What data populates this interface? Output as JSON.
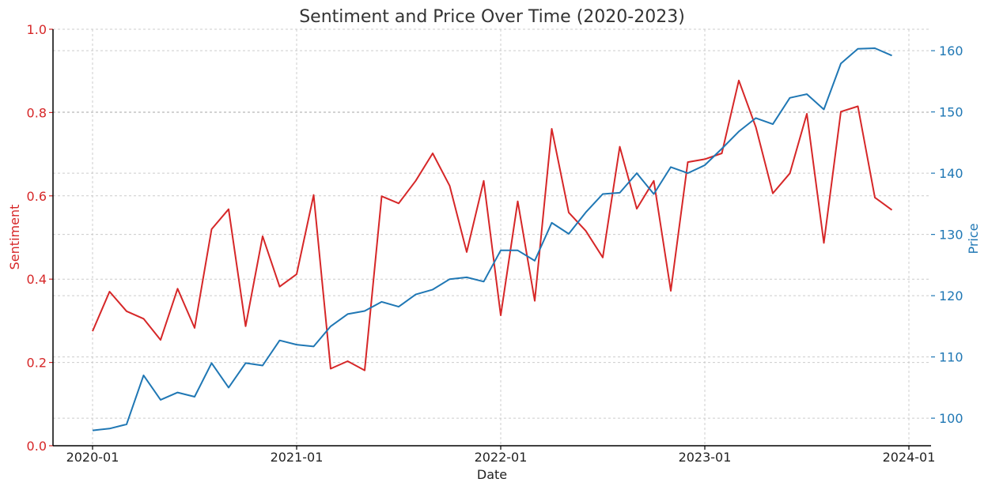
{
  "colors": {
    "sentiment": "#d62728",
    "price": "#1f77b4",
    "text": "#222222"
  },
  "chart_data": {
    "type": "line",
    "title": "Sentiment and Price Over Time (2020-2023)",
    "xlabel": "Date",
    "ylabel_left": "Sentiment",
    "ylabel_right": "Price",
    "x_ticks": [
      "2020-01",
      "2021-01",
      "2022-01",
      "2023-01",
      "2024-01"
    ],
    "ylim_left": [
      0,
      1.0
    ],
    "y_ticks_left": [
      "0.0",
      "0.2",
      "0.4",
      "0.6",
      "0.8",
      "1.0"
    ],
    "ylim_right": [
      95.5,
      163.5
    ],
    "y_ticks_right": [
      "100",
      "110",
      "120",
      "130",
      "140",
      "150",
      "160"
    ],
    "grid": true,
    "x_dates": [
      "2020-01",
      "2020-02",
      "2020-03",
      "2020-04",
      "2020-05",
      "2020-06",
      "2020-07",
      "2020-08",
      "2020-09",
      "2020-10",
      "2020-11",
      "2020-12",
      "2021-01",
      "2021-02",
      "2021-03",
      "2021-04",
      "2021-05",
      "2021-06",
      "2021-07",
      "2021-08",
      "2021-09",
      "2021-10",
      "2021-11",
      "2021-12",
      "2022-01",
      "2022-02",
      "2022-03",
      "2022-04",
      "2022-05",
      "2022-06",
      "2022-07",
      "2022-08",
      "2022-09",
      "2022-10",
      "2022-11",
      "2022-12",
      "2023-01",
      "2023-02",
      "2023-03",
      "2023-04",
      "2023-05",
      "2023-06",
      "2023-07",
      "2023-08",
      "2023-09",
      "2023-10",
      "2023-11",
      "2023-12"
    ],
    "series": [
      {
        "name": "Sentiment",
        "axis": "left",
        "values": [
          0.275,
          0.37,
          0.323,
          0.305,
          0.254,
          0.377,
          0.283,
          0.52,
          0.568,
          0.287,
          0.503,
          0.382,
          0.412,
          0.602,
          0.185,
          0.203,
          0.181,
          0.599,
          0.582,
          0.636,
          0.702,
          0.624,
          0.465,
          0.636,
          0.313,
          0.587,
          0.348,
          0.761,
          0.56,
          0.516,
          0.452,
          0.718,
          0.569,
          0.636,
          0.372,
          0.681,
          0.688,
          0.702,
          0.877,
          0.765,
          0.606,
          0.654,
          0.797,
          0.487,
          0.802,
          0.815,
          0.596,
          0.566
        ]
      },
      {
        "name": "Price",
        "axis": "right",
        "values": [
          98.0,
          98.3,
          99.0,
          107.0,
          103.0,
          104.2,
          103.5,
          109.0,
          105.0,
          109.0,
          108.6,
          112.7,
          112.0,
          111.7,
          115.0,
          117.0,
          117.5,
          119.0,
          118.2,
          120.2,
          121.0,
          122.7,
          123.0,
          122.3,
          127.4,
          127.4,
          125.7,
          131.9,
          130.1,
          133.6,
          136.6,
          136.8,
          140.0,
          136.6,
          141.0,
          140.0,
          141.3,
          144.0,
          146.8,
          149.0,
          148.0,
          152.3,
          152.9,
          150.4,
          157.9,
          160.3,
          160.4,
          159.2
        ]
      }
    ]
  }
}
